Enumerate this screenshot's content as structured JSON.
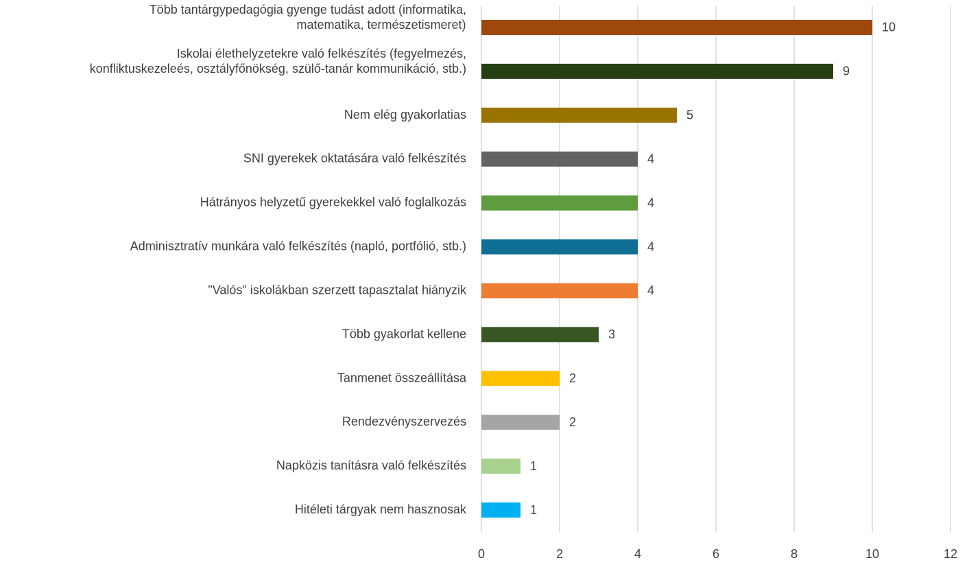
{
  "chart_data": {
    "type": "barh",
    "categories": [
      "Több tantárgypedagógia gyenge tudást adott (informatika,\nmatematika, természetismeret)",
      "Iskolai élethelyzetekre való felkészítés (fegyelmezés,\nkonfliktuskezeleés, osztályfőnökség, szülő-tanár kommunikáció, stb.)",
      "Nem elég gyakorlatias",
      "SNI gyerekek oktatására való felkészítés",
      "Hátrányos helyzetű gyerekekkel való foglalkozás",
      "Adminisztratív munkára való felkészítés (napló, portfólió, stb.)",
      "\"Valós\" iskolákban szerzett tapasztalat hiányzik",
      "Több gyakorlat kellene",
      "Tanmenet összeállítása",
      "Rendezvényszervezés",
      "Napközis tanításra való felkészítés",
      "Hitéleti tárgyak nem hasznosak"
    ],
    "values": [
      10,
      9,
      5,
      4,
      4,
      4,
      4,
      3,
      2,
      2,
      1,
      1
    ],
    "colors": [
      "#9e480e",
      "#264013",
      "#997300",
      "#636363",
      "#5e9c3f",
      "#0e6e94",
      "#ed7d31",
      "#375623",
      "#ffc000",
      "#a5a5a5",
      "#a9d18e",
      "#00b0f0"
    ],
    "xlim": [
      0,
      12
    ],
    "xticks": [
      0,
      2,
      4,
      6,
      8,
      10,
      12
    ],
    "grid": true
  }
}
